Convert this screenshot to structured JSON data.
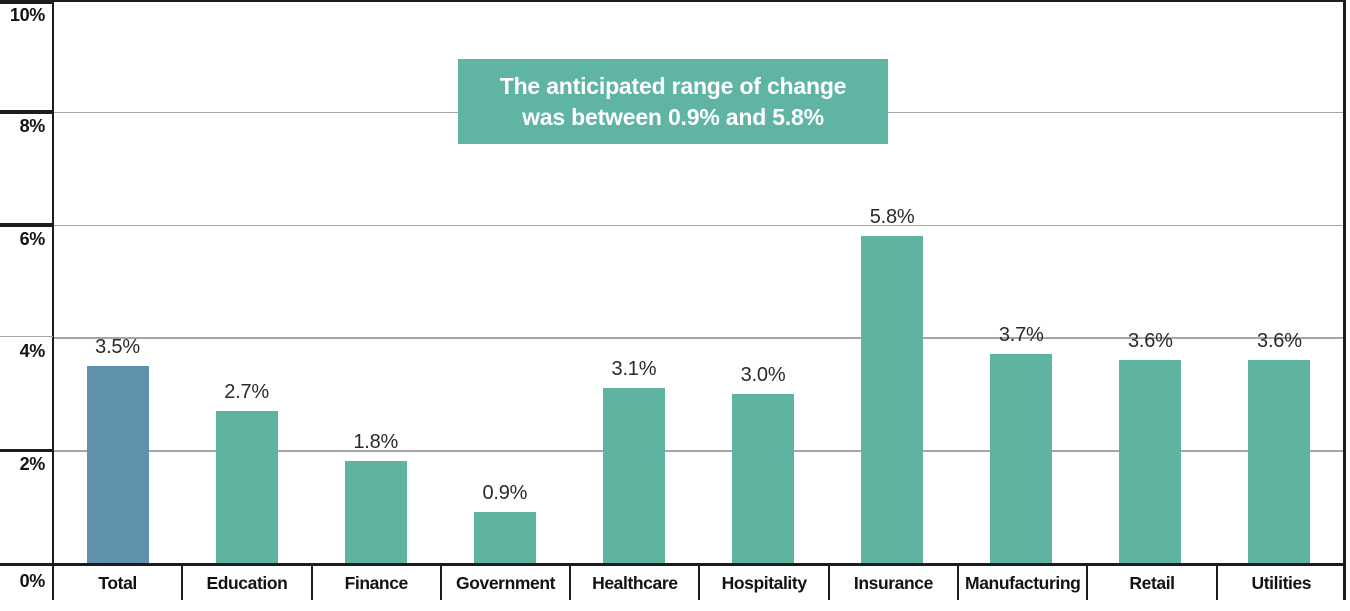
{
  "chart_data": {
    "type": "bar",
    "title": "",
    "xlabel": "",
    "ylabel": "",
    "ylim": [
      0,
      10
    ],
    "grid": true,
    "categories": [
      "Total",
      "Education",
      "Finance",
      "Government",
      "Healthcare",
      "Hospitality",
      "Insurance",
      "Manufacturing",
      "Retail",
      "Utilities"
    ],
    "values": [
      3.5,
      2.7,
      1.8,
      0.9,
      3.1,
      3.0,
      5.8,
      3.7,
      3.6,
      3.6
    ],
    "value_labels": [
      "3.5%",
      "2.7%",
      "1.8%",
      "0.9%",
      "3.1%",
      "3.0%",
      "5.8%",
      "3.7%",
      "3.6%",
      "3.6%"
    ],
    "bar_colors": [
      "#5f91ac",
      "#5fb3a1",
      "#5fb3a1",
      "#5fb3a1",
      "#5fb3a1",
      "#5fb3a1",
      "#5fb3a1",
      "#5fb3a1",
      "#5fb3a1",
      "#5fb3a1"
    ],
    "y_ticks": [
      {
        "label": "10%",
        "value": 10,
        "thick": true
      },
      {
        "label": "8%",
        "value": 8,
        "thick": true
      },
      {
        "label": "6%",
        "value": 6,
        "thick": true
      },
      {
        "label": "4%",
        "value": 4,
        "thick": false
      },
      {
        "label": "2%",
        "value": 2,
        "thick": true
      },
      {
        "label": "0%",
        "value": 0,
        "thick": true
      }
    ],
    "annotation": {
      "line1": "The anticipated range of change",
      "line2": "was between 0.9% and 5.8%",
      "bg_color": "#5fb4a3",
      "text_color": "#ffffff"
    },
    "colors": {
      "highlight_bar": "#5f91ac",
      "default_bar": "#5fb3a1",
      "gridline": "#a4a4aa",
      "axis": "#1d1d1d"
    },
    "legend": null
  }
}
